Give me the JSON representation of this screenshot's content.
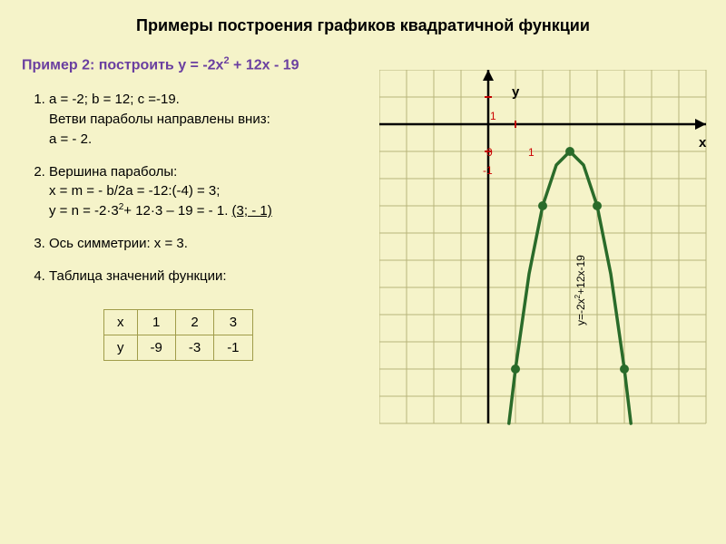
{
  "title": "Примеры построения графиков квадратичной функции",
  "subtitle_prefix": "Пример 2: построить у = -2х",
  "subtitle_exp": "2",
  "subtitle_suffix": " + 12х - 19",
  "steps": {
    "s1": {
      "l1": "а = -2; b = 12; c =-19.",
      "l2": "Ветви параболы направлены вниз:",
      "l3": "а = - 2."
    },
    "s2": {
      "l1": "Вершина параболы:",
      "l2": "x = m = - b/2a = -12:(-4) = 3;",
      "l3a": "y = n = -2·3",
      "l3exp": "2",
      "l3b": "+ 12·3 – 19 = - 1.   ",
      "ans": "(3; - 1)"
    },
    "s3": "Ось симметрии: х = 3.",
    "s4": "Таблица значений функции:"
  },
  "table": {
    "rowx": {
      "h": "х",
      "c1": "1",
      "c2": "2",
      "c3": "3"
    },
    "rowy": {
      "h": "у",
      "c1": "-9",
      "c2": "-3",
      "c3": "-1"
    }
  },
  "axis": {
    "y": "у",
    "x": "х",
    "zero": "0",
    "one": "1",
    "m1": "-1"
  },
  "func_label_a": "у=-2х",
  "func_label_exp": "2",
  "func_label_b": "+12х-19",
  "graph": {
    "cell": 30,
    "origin_col": 4,
    "origin_row": 2,
    "cols": 12,
    "rows": 13,
    "grid_color": "#b8b57a",
    "axis_color": "#000000",
    "unit_color": "#c00000",
    "curve_color": "#2a6b2a",
    "curve_width": 3.5,
    "point_fill": "#2a6b2a",
    "point_r": 5,
    "curve_points": [
      [
        0.76,
        -11
      ],
      [
        1,
        -9
      ],
      [
        1.5,
        -5.5
      ],
      [
        2,
        -3
      ],
      [
        2.5,
        -1.5
      ],
      [
        3,
        -1
      ],
      [
        3.5,
        -1.5
      ],
      [
        4,
        -3
      ],
      [
        4.5,
        -5.5
      ],
      [
        5,
        -9
      ],
      [
        5.24,
        -11
      ]
    ],
    "dots": [
      [
        3,
        -1
      ],
      [
        2,
        -3
      ],
      [
        4,
        -3
      ],
      [
        1,
        -9
      ],
      [
        5,
        -9
      ]
    ]
  }
}
